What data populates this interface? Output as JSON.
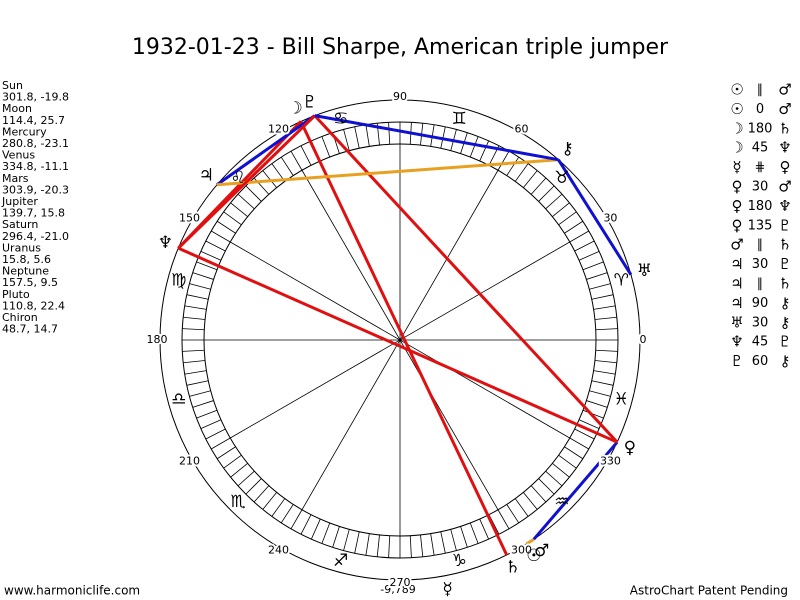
{
  "title": "1932-01-23 - Bill Sharpe, American triple jumper",
  "planets": [
    {
      "name": "Sun",
      "glyph": "☉",
      "position": "301.8, -19.8"
    },
    {
      "name": "Moon",
      "glyph": "☽",
      "position": "114.4, 25.7"
    },
    {
      "name": "Mercury",
      "glyph": "☿",
      "position": "280.8, -23.1"
    },
    {
      "name": "Venus",
      "glyph": "♀",
      "position": "334.8, -11.1"
    },
    {
      "name": "Mars",
      "glyph": "♂",
      "position": "303.9, -20.3"
    },
    {
      "name": "Jupiter",
      "glyph": "♃",
      "position": "139.7, 15.8"
    },
    {
      "name": "Saturn",
      "glyph": "♄",
      "position": "296.4, -21.0"
    },
    {
      "name": "Uranus",
      "glyph": "♅",
      "position": "15.8, 5.6"
    },
    {
      "name": "Neptune",
      "glyph": "♆",
      "position": "157.5, 9.5"
    },
    {
      "name": "Pluto",
      "glyph": "♇",
      "position": "110.8, 22.4"
    },
    {
      "name": "Chiron",
      "glyph": "⚷",
      "position": "48.7, 14.7"
    }
  ],
  "aspects": [
    {
      "a": "☉",
      "type": "∥",
      "b": "♂"
    },
    {
      "a": "☉",
      "type": "0",
      "b": "♂",
      "color": "#e8a020"
    },
    {
      "a": "☽",
      "type": "180",
      "b": "♄",
      "color": "#e01010"
    },
    {
      "a": "☽",
      "type": "45",
      "b": "♆",
      "color": "#e01010"
    },
    {
      "a": "☿",
      "type": "⋕",
      "b": "♀"
    },
    {
      "a": "♀",
      "type": "30",
      "b": "♂",
      "color": "#1010d0"
    },
    {
      "a": "♀",
      "type": "180",
      "b": "♆",
      "color": "#e01010"
    },
    {
      "a": "♀",
      "type": "135",
      "b": "♇",
      "color": "#e01010"
    },
    {
      "a": "♂",
      "type": "∥",
      "b": "♄"
    },
    {
      "a": "♃",
      "type": "30",
      "b": "♇",
      "color": "#1010d0"
    },
    {
      "a": "♃",
      "type": "∥",
      "b": "♄"
    },
    {
      "a": "♃",
      "type": "90",
      "b": "⚷",
      "color": "#e8a020"
    },
    {
      "a": "♅",
      "type": "30",
      "b": "⚷",
      "color": "#1010d0"
    },
    {
      "a": "♆",
      "type": "45",
      "b": "♇",
      "color": "#e01010"
    },
    {
      "a": "♇",
      "type": "60",
      "b": "⚷",
      "color": "#1010d0"
    }
  ],
  "signs": [
    "♈",
    "♉",
    "♊",
    "♋",
    "♌",
    "♍",
    "♎",
    "♏",
    "♐",
    "♑",
    "♒",
    "♓"
  ],
  "degree_labels": [
    "0",
    "30",
    "60",
    "90",
    "120",
    "150",
    "180",
    "210",
    "240",
    "270",
    "300",
    "330"
  ],
  "harmonic": "-9,789",
  "footer_left": "www.harmoniclife.com",
  "footer_right": "AstroChart Patent Pending"
}
